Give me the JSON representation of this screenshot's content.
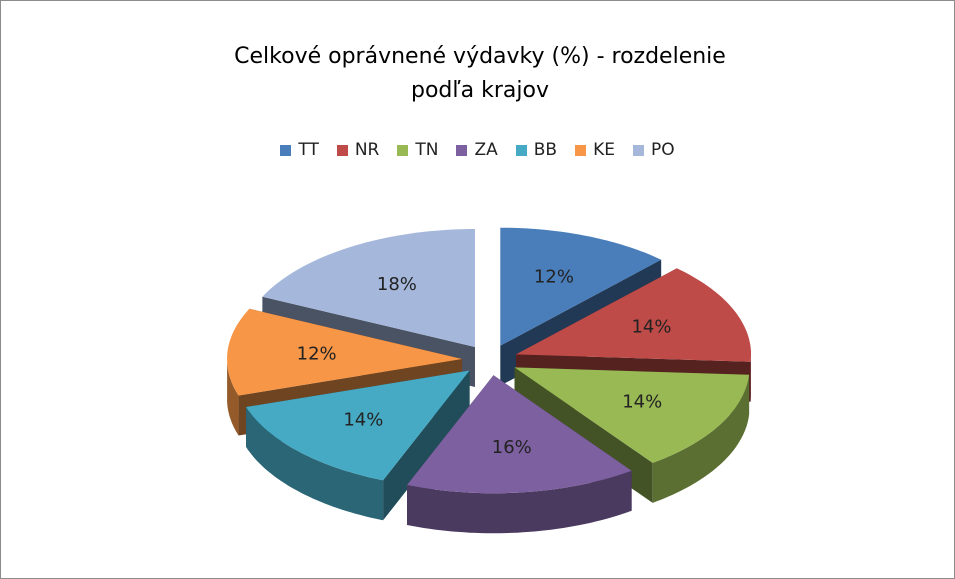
{
  "chart_data": {
    "type": "pie3d",
    "title": "Celkové oprávnené výdavky (%) - rozdelenie podľa krajov",
    "categories": [
      "TT",
      "NR",
      "TN",
      "ZA",
      "BB",
      "KE",
      "PO"
    ],
    "values": [
      12,
      14,
      14,
      16,
      14,
      12,
      18
    ],
    "value_labels": [
      "12%",
      "14%",
      "14%",
      "16%",
      "14%",
      "12%",
      "18%"
    ],
    "colors": [
      "#4a7ebb",
      "#be4b48",
      "#98b954",
      "#7d60a0",
      "#46aac5",
      "#f79646",
      "#a5b8dc"
    ],
    "legend": "top"
  }
}
